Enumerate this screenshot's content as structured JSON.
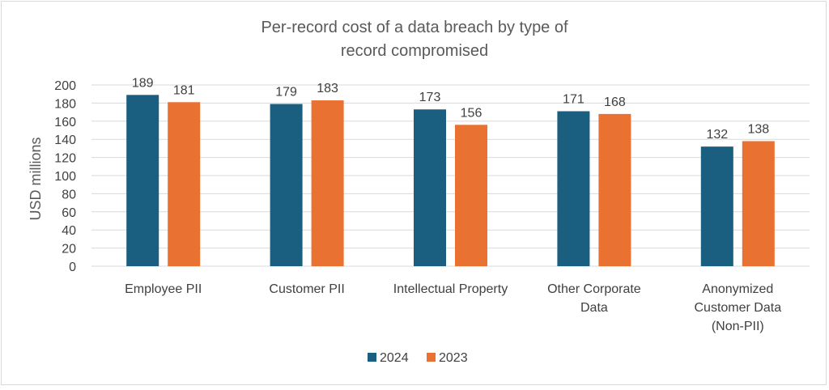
{
  "chart_data": {
    "type": "bar",
    "title_lines": [
      "Per-record cost of a data breach by type of",
      "record compromised"
    ],
    "ylabel": "USD millions",
    "xlabel": "",
    "ylim": [
      0,
      200
    ],
    "yticks": [
      0,
      20,
      40,
      60,
      80,
      100,
      120,
      140,
      160,
      180,
      200
    ],
    "grid": true,
    "legend_position": "bottom",
    "categories": [
      [
        "Employee PII"
      ],
      [
        "Customer PII"
      ],
      [
        "Intellectual Property"
      ],
      [
        "Other Corporate",
        "Data"
      ],
      [
        "Anonymized",
        "Customer Data",
        "(Non-PII)"
      ]
    ],
    "series": [
      {
        "name": "2024",
        "color": "#1a5e80",
        "values": [
          189,
          179,
          173,
          171,
          132
        ]
      },
      {
        "name": "2023",
        "color": "#e97132",
        "values": [
          181,
          183,
          156,
          168,
          138
        ]
      }
    ]
  }
}
